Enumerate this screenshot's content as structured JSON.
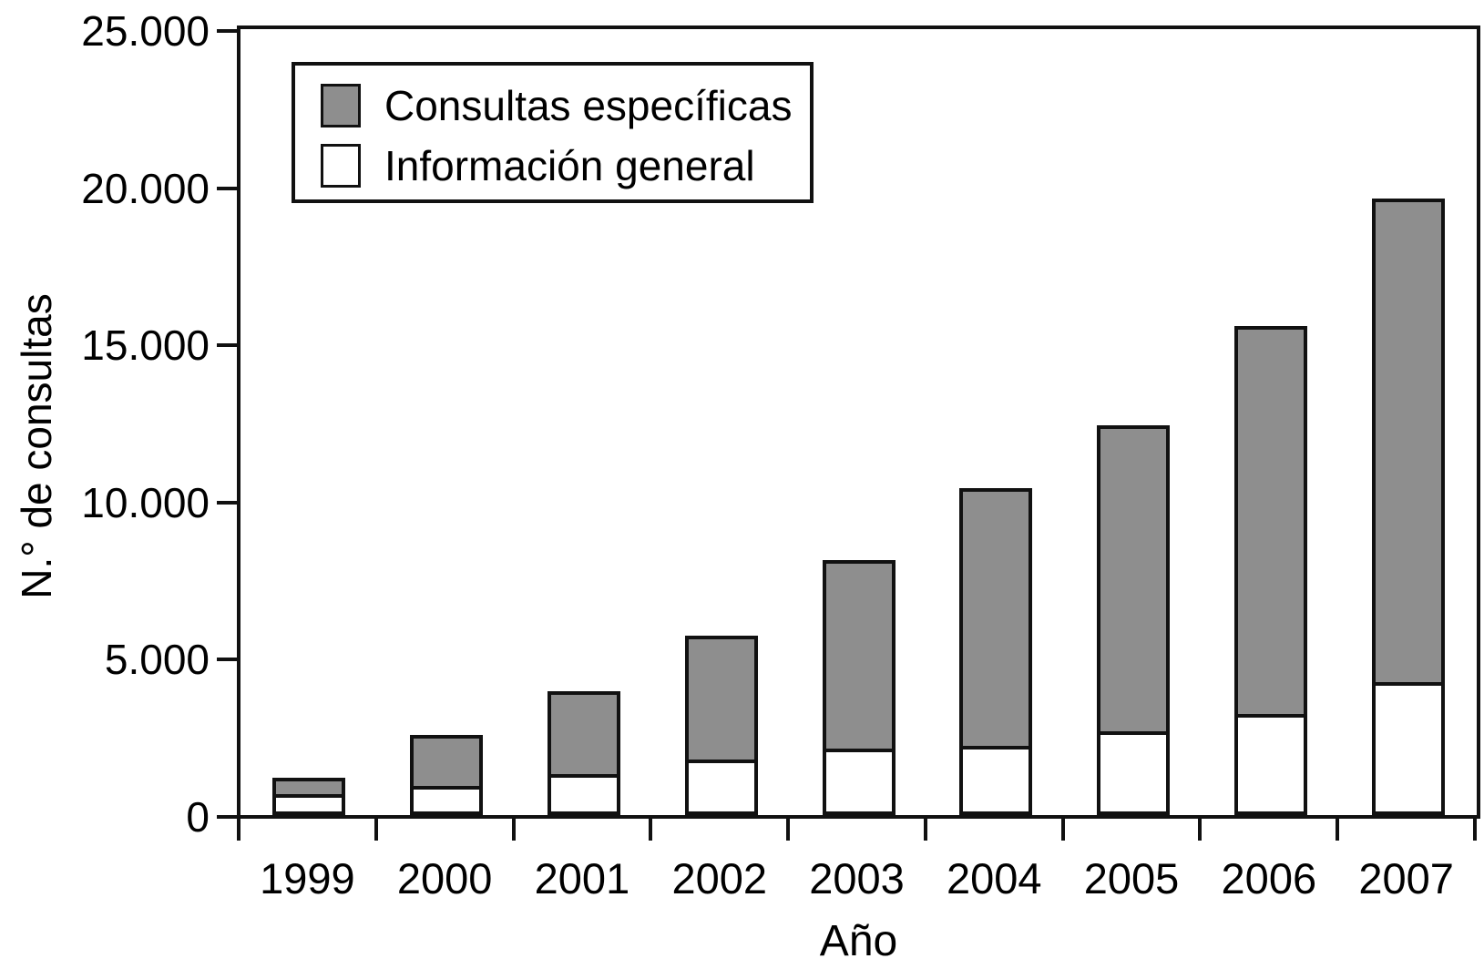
{
  "chart_data": {
    "type": "bar",
    "stacked": true,
    "categories": [
      "1999",
      "2000",
      "2001",
      "2002",
      "2003",
      "2004",
      "2005",
      "2006",
      "2007"
    ],
    "series": [
      {
        "name": "Información general",
        "color": "#ffffff",
        "stack_position": "bottom",
        "values": [
          550,
          800,
          1200,
          1650,
          2000,
          2100,
          2550,
          3100,
          4100
        ]
      },
      {
        "name": "Consultas específicas",
        "color": "#8e8e8e",
        "stack_position": "top",
        "values": [
          650,
          1750,
          2750,
          4050,
          6100,
          8300,
          9850,
          12450,
          15500
        ]
      }
    ],
    "totals": [
      1200,
      2550,
      3950,
      5700,
      8100,
      10400,
      12400,
      15550,
      19600
    ],
    "xlabel": "Año",
    "ylabel": "N.° de consultas",
    "ylim": [
      0,
      25000
    ],
    "yticks": [
      "0",
      "5.000",
      "10.000",
      "15.000",
      "20.000",
      "25.000"
    ],
    "grid": false,
    "legend_position": "inside-top-left",
    "legend_items": [
      {
        "label": "Consultas específicas",
        "color": "#8e8e8e"
      },
      {
        "label": "Información general",
        "color": "#ffffff"
      }
    ]
  },
  "colors": {
    "line": "#111111",
    "text": "#000000",
    "background": "#ffffff",
    "bar_fill_gray": "#8e8e8e",
    "bar_fill_white": "#ffffff"
  }
}
